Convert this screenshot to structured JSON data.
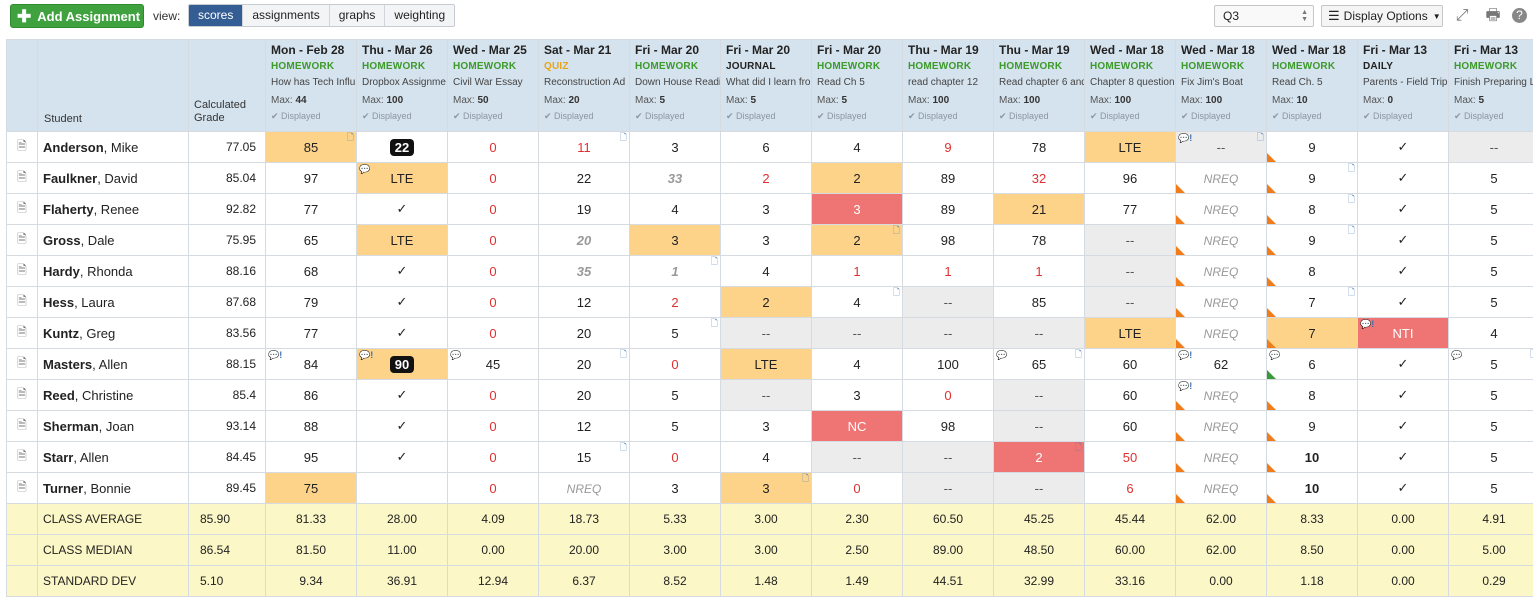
{
  "toolbar": {
    "add_label": "Add Assignment",
    "view_label": "view:",
    "views": [
      "scores",
      "assignments",
      "graphs",
      "weighting"
    ],
    "active_view": "scores",
    "quarter": "Q3",
    "display_options_label": "Display Options"
  },
  "colors": {
    "add_button": "#3fa23f",
    "active_view": "#345d93",
    "homework_type": "#3d9a2b",
    "quiz_type": "#e8a317",
    "late_fill": "#fdd38a",
    "missing_fill": "#ef7474",
    "summary_fill": "#fcf7c6"
  },
  "header": {
    "student": "Student",
    "grade": "Calculated Grade",
    "displayed": "Displayed",
    "max_prefix": "Max:"
  },
  "assignments": [
    {
      "date": "Mon - Feb 28",
      "type": "HOMEWORK",
      "name": "How has Tech Influ",
      "max": "44"
    },
    {
      "date": "Thu - Mar 26",
      "type": "HOMEWORK",
      "name": "Dropbox Assignme",
      "max": "100"
    },
    {
      "date": "Wed - Mar 25",
      "type": "HOMEWORK",
      "name": "Civil War Essay",
      "max": "50"
    },
    {
      "date": "Sat - Mar 21",
      "type": "QUIZ",
      "name": "Reconstruction Ad",
      "max": "20"
    },
    {
      "date": "Fri - Mar 20",
      "type": "HOMEWORK",
      "name": "Down House Readi",
      "max": "5"
    },
    {
      "date": "Fri - Mar 20",
      "type": "JOURNAL",
      "name": "What did I learn fro",
      "max": "5"
    },
    {
      "date": "Fri - Mar 20",
      "type": "HOMEWORK",
      "name": "Read Ch 5",
      "max": "5"
    },
    {
      "date": "Thu - Mar 19",
      "type": "HOMEWORK",
      "name": "read chapter 12",
      "max": "100"
    },
    {
      "date": "Thu - Mar 19",
      "type": "HOMEWORK",
      "name": "Read chapter 6 and",
      "max": "100"
    },
    {
      "date": "Wed - Mar 18",
      "type": "HOMEWORK",
      "name": "Chapter 8 question",
      "max": "100"
    },
    {
      "date": "Wed - Mar 18",
      "type": "HOMEWORK",
      "name": "Fix Jim's Boat",
      "max": "100"
    },
    {
      "date": "Wed - Mar 18",
      "type": "HOMEWORK",
      "name": "Read Ch. 5",
      "max": "10"
    },
    {
      "date": "Fri - Mar 13",
      "type": "DAILY",
      "name": "Parents - Field Trip",
      "max": "0"
    },
    {
      "date": "Fri - Mar 13",
      "type": "HOMEWORK",
      "name": "Finish Preparing L",
      "max": "5"
    }
  ],
  "students": [
    {
      "last": "Anderson",
      "first": ", Mike",
      "grade": "77.05"
    },
    {
      "last": "Faulkner",
      "first": ", David",
      "grade": "85.04"
    },
    {
      "last": "Flaherty",
      "first": ", Renee",
      "grade": "92.82"
    },
    {
      "last": "Gross",
      "first": ", Dale",
      "grade": "75.95"
    },
    {
      "last": "Hardy",
      "first": ", Rhonda",
      "grade": "88.16"
    },
    {
      "last": "Hess",
      "first": ", Laura",
      "grade": "87.68"
    },
    {
      "last": "Kuntz",
      "first": ", Greg",
      "grade": "83.56"
    },
    {
      "last": "Masters",
      "first": ", Allen",
      "grade": "88.15"
    },
    {
      "last": "Reed",
      "first": ", Christine",
      "grade": "85.4"
    },
    {
      "last": "Sherman",
      "first": ", Joan",
      "grade": "93.14"
    },
    {
      "last": "Starr",
      "first": ", Allen",
      "grade": "84.45"
    },
    {
      "last": "Turner",
      "first": ", Bonnie",
      "grade": "89.45"
    }
  ],
  "scores": [
    [
      {
        "v": "85",
        "c": "orange",
        "note": 1
      },
      {
        "v": "22",
        "badge": 1
      },
      {
        "v": "0",
        "red": 1
      },
      {
        "v": "11",
        "red": 1,
        "note": 1
      },
      {
        "v": "3"
      },
      {
        "v": "6"
      },
      {
        "v": "4"
      },
      {
        "v": "9",
        "red": 1
      },
      {
        "v": "78"
      },
      {
        "v": "LTE",
        "c": "orange"
      },
      {
        "v": "--",
        "c": "grey",
        "bubble": "💬!",
        "note": 1
      },
      {
        "v": "9",
        "flag": "o"
      },
      {
        "v": "✓"
      },
      {
        "v": "--",
        "c": "grey"
      }
    ],
    [
      {
        "v": "97"
      },
      {
        "v": "LTE",
        "c": "orange",
        "bubble": "💬"
      },
      {
        "v": "0",
        "red": 1
      },
      {
        "v": "22"
      },
      {
        "v": "33",
        "ital": 1
      },
      {
        "v": "2",
        "red": 1
      },
      {
        "v": "2",
        "c": "orange"
      },
      {
        "v": "89"
      },
      {
        "v": "32",
        "red": 1
      },
      {
        "v": "96"
      },
      {
        "v": "NREQ",
        "nreq": 1,
        "flag": "o"
      },
      {
        "v": "9",
        "flag": "o",
        "note": 1
      },
      {
        "v": "✓"
      },
      {
        "v": "5"
      }
    ],
    [
      {
        "v": "77"
      },
      {
        "v": "✓"
      },
      {
        "v": "0",
        "red": 1
      },
      {
        "v": "19"
      },
      {
        "v": "4"
      },
      {
        "v": "3"
      },
      {
        "v": "3",
        "c": "red"
      },
      {
        "v": "89"
      },
      {
        "v": "21",
        "c": "orange"
      },
      {
        "v": "77"
      },
      {
        "v": "NREQ",
        "nreq": 1,
        "flag": "o"
      },
      {
        "v": "8",
        "flag": "o",
        "note": 1
      },
      {
        "v": "✓"
      },
      {
        "v": "5"
      }
    ],
    [
      {
        "v": "65"
      },
      {
        "v": "LTE",
        "c": "orange"
      },
      {
        "v": "0",
        "red": 1
      },
      {
        "v": "20",
        "ital": 1
      },
      {
        "v": "3",
        "c": "orange"
      },
      {
        "v": "3"
      },
      {
        "v": "2",
        "c": "orange",
        "note": 1
      },
      {
        "v": "98"
      },
      {
        "v": "78"
      },
      {
        "v": "--",
        "c": "grey"
      },
      {
        "v": "NREQ",
        "nreq": 1,
        "flag": "o"
      },
      {
        "v": "9",
        "flag": "o",
        "note": 1
      },
      {
        "v": "✓"
      },
      {
        "v": "5"
      }
    ],
    [
      {
        "v": "68"
      },
      {
        "v": "✓"
      },
      {
        "v": "0",
        "red": 1
      },
      {
        "v": "35",
        "ital": 1
      },
      {
        "v": "1",
        "ital": 1,
        "note": 1
      },
      {
        "v": "4"
      },
      {
        "v": "1",
        "red": 1
      },
      {
        "v": "1",
        "red": 1
      },
      {
        "v": "1",
        "red": 1
      },
      {
        "v": "--",
        "c": "grey"
      },
      {
        "v": "NREQ",
        "nreq": 1,
        "flag": "o"
      },
      {
        "v": "8",
        "flag": "o"
      },
      {
        "v": "✓"
      },
      {
        "v": "5"
      }
    ],
    [
      {
        "v": "79"
      },
      {
        "v": "✓"
      },
      {
        "v": "0",
        "red": 1
      },
      {
        "v": "12"
      },
      {
        "v": "2",
        "red": 1
      },
      {
        "v": "2",
        "c": "orange"
      },
      {
        "v": "4",
        "note": 1
      },
      {
        "v": "--",
        "c": "grey"
      },
      {
        "v": "85"
      },
      {
        "v": "--",
        "c": "grey"
      },
      {
        "v": "NREQ",
        "nreq": 1,
        "flag": "o"
      },
      {
        "v": "7",
        "flag": "o",
        "note": 1
      },
      {
        "v": "✓"
      },
      {
        "v": "5"
      }
    ],
    [
      {
        "v": "77"
      },
      {
        "v": "✓"
      },
      {
        "v": "0",
        "red": 1
      },
      {
        "v": "20"
      },
      {
        "v": "5",
        "note": 1
      },
      {
        "v": "--",
        "c": "grey"
      },
      {
        "v": "--",
        "c": "grey"
      },
      {
        "v": "--",
        "c": "grey"
      },
      {
        "v": "--",
        "c": "grey"
      },
      {
        "v": "LTE",
        "c": "orange"
      },
      {
        "v": "NREQ",
        "nreq": 1,
        "flag": "o"
      },
      {
        "v": "7",
        "c": "orange",
        "flag": "o"
      },
      {
        "v": "NTI",
        "c": "red",
        "bubble": "💬!"
      },
      {
        "v": "4"
      }
    ],
    [
      {
        "v": "84",
        "bubble": "💬!"
      },
      {
        "v": "90",
        "badge": 1,
        "c": "orange",
        "bubble": "💬!"
      },
      {
        "v": "45",
        "bubble": "💬"
      },
      {
        "v": "20",
        "note": 1
      },
      {
        "v": "0",
        "red": 1
      },
      {
        "v": "LTE",
        "c": "orange"
      },
      {
        "v": "4"
      },
      {
        "v": "100"
      },
      {
        "v": "65",
        "bubble": "💬",
        "note": 1
      },
      {
        "v": "60"
      },
      {
        "v": "62",
        "bubble": "💬!"
      },
      {
        "v": "6",
        "flag": "g",
        "bubble": "💬"
      },
      {
        "v": "✓"
      },
      {
        "v": "5",
        "bubble": "💬",
        "note": 1
      }
    ],
    [
      {
        "v": "86"
      },
      {
        "v": "✓"
      },
      {
        "v": "0",
        "red": 1
      },
      {
        "v": "20"
      },
      {
        "v": "5"
      },
      {
        "v": "--",
        "c": "grey"
      },
      {
        "v": "3"
      },
      {
        "v": "0",
        "red": 1
      },
      {
        "v": "--",
        "c": "grey"
      },
      {
        "v": "60"
      },
      {
        "v": "NREQ",
        "nreq": 1,
        "flag": "o",
        "bubble": "💬!"
      },
      {
        "v": "8",
        "flag": "o"
      },
      {
        "v": "✓"
      },
      {
        "v": "5"
      }
    ],
    [
      {
        "v": "88"
      },
      {
        "v": "✓"
      },
      {
        "v": "0",
        "red": 1
      },
      {
        "v": "12"
      },
      {
        "v": "5"
      },
      {
        "v": "3"
      },
      {
        "v": "NC",
        "c": "red"
      },
      {
        "v": "98"
      },
      {
        "v": "--",
        "c": "grey"
      },
      {
        "v": "60"
      },
      {
        "v": "NREQ",
        "nreq": 1,
        "flag": "o"
      },
      {
        "v": "9",
        "flag": "o"
      },
      {
        "v": "✓"
      },
      {
        "v": "5"
      }
    ],
    [
      {
        "v": "95"
      },
      {
        "v": "✓"
      },
      {
        "v": "0",
        "red": 1
      },
      {
        "v": "15",
        "note": 1
      },
      {
        "v": "0",
        "red": 1
      },
      {
        "v": "4"
      },
      {
        "v": "--",
        "c": "grey"
      },
      {
        "v": "--",
        "c": "grey"
      },
      {
        "v": "2",
        "c": "red",
        "note": 1
      },
      {
        "v": "50",
        "red": 1
      },
      {
        "v": "NREQ",
        "nreq": 1,
        "flag": "o"
      },
      {
        "v": "10",
        "bold": 1,
        "flag": "o"
      },
      {
        "v": "✓"
      },
      {
        "v": "5"
      }
    ],
    [
      {
        "v": "75",
        "c": "orange"
      },
      {
        "v": ""
      },
      {
        "v": "0",
        "red": 1
      },
      {
        "v": "NREQ",
        "nreq": 1
      },
      {
        "v": "3"
      },
      {
        "v": "3",
        "c": "orange",
        "note": 1
      },
      {
        "v": "0",
        "red": 1
      },
      {
        "v": "--",
        "c": "grey"
      },
      {
        "v": "--",
        "c": "grey"
      },
      {
        "v": "6",
        "red": 1
      },
      {
        "v": "NREQ",
        "nreq": 1,
        "flag": "o"
      },
      {
        "v": "10",
        "bold": 1,
        "flag": "o"
      },
      {
        "v": "✓"
      },
      {
        "v": "5"
      }
    ]
  ],
  "summary": [
    {
      "label": "CLASS AVERAGE",
      "grade": "85.90",
      "values": [
        "81.33",
        "28.00",
        "4.09",
        "18.73",
        "5.33",
        "3.00",
        "2.30",
        "60.50",
        "45.25",
        "45.44",
        "62.00",
        "8.33",
        "0.00",
        "4.91"
      ]
    },
    {
      "label": "CLASS MEDIAN",
      "grade": "86.54",
      "values": [
        "81.50",
        "11.00",
        "0.00",
        "20.00",
        "3.00",
        "3.00",
        "2.50",
        "89.00",
        "48.50",
        "60.00",
        "62.00",
        "8.50",
        "0.00",
        "5.00"
      ]
    },
    {
      "label": "STANDARD DEV",
      "grade": "5.10",
      "values": [
        "9.34",
        "36.91",
        "12.94",
        "6.37",
        "8.52",
        "1.48",
        "1.49",
        "44.51",
        "32.99",
        "33.16",
        "0.00",
        "1.18",
        "0.00",
        "0.29"
      ]
    }
  ]
}
